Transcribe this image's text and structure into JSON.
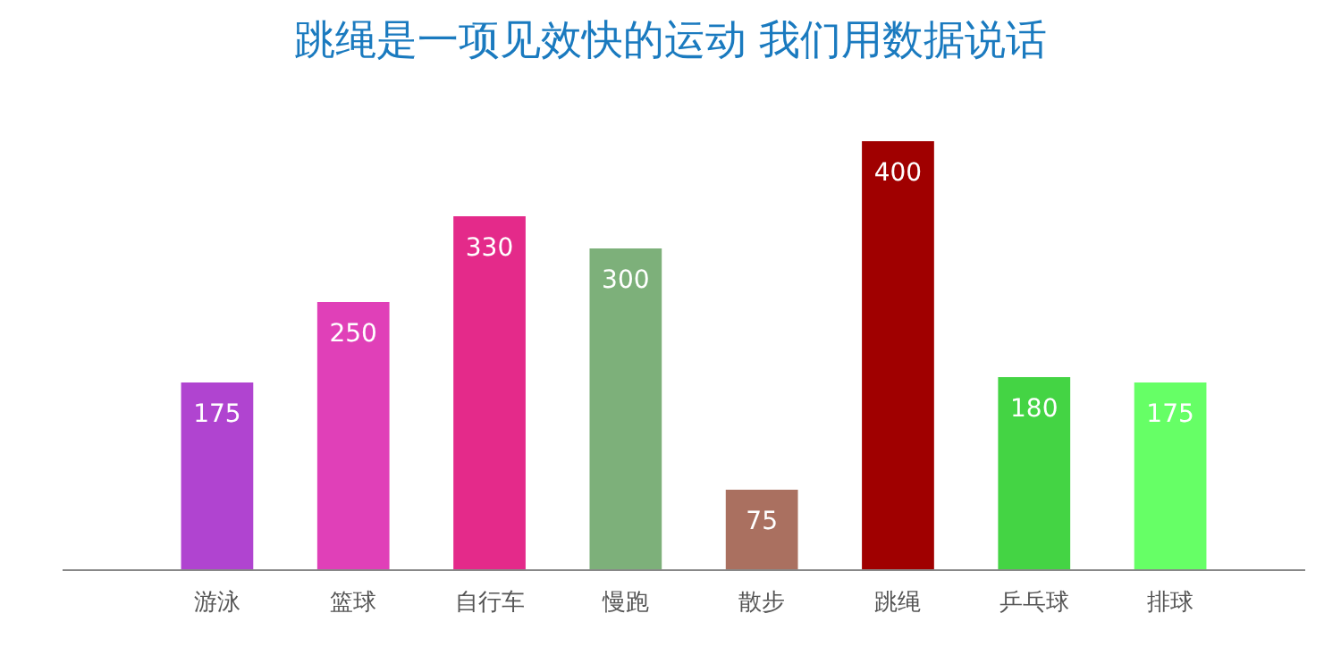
{
  "chart_data": {
    "type": "bar",
    "title": "跳绳是一项见效快的运动 我们用数据说话",
    "categories": [
      "游泳",
      "篮球",
      "自行车",
      "慢跑",
      "散步",
      "跳绳",
      "乒乓球",
      "排球"
    ],
    "values": [
      175,
      250,
      330,
      300,
      75,
      400,
      180,
      175
    ],
    "colors": [
      "#b044d0",
      "#e040b8",
      "#e42a8a",
      "#7db07a",
      "#aa7060",
      "#a00000",
      "#44d444",
      "#66ff66"
    ],
    "data_labels": true
  }
}
